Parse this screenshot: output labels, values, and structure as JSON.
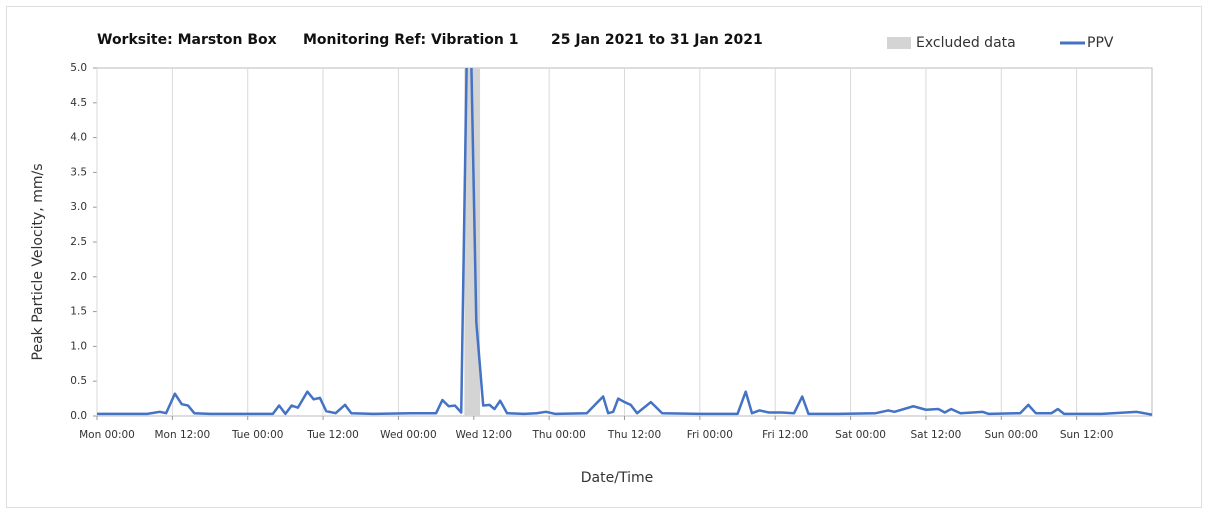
{
  "chart_data": {
    "type": "line",
    "title": [
      "Worksite: Marston Box",
      "Monitoring Ref: Vibration 1",
      "25 Jan 2021 to 31 Jan 2021"
    ],
    "x_label": "Date/Time",
    "y_label": "Peak Particle Velocity, mm/s",
    "xlim": [
      0,
      168
    ],
    "xticks": [
      {
        "value": 0,
        "label": "Mon 00:00"
      },
      {
        "value": 12,
        "label": "Mon 12:00"
      },
      {
        "value": 24,
        "label": "Tue 00:00"
      },
      {
        "value": 36,
        "label": "Tue 12:00"
      },
      {
        "value": 48,
        "label": "Wed 00:00"
      },
      {
        "value": 60,
        "label": "Wed 12:00"
      },
      {
        "value": 72,
        "label": "Thu 00:00"
      },
      {
        "value": 84,
        "label": "Thu 12:00"
      },
      {
        "value": 96,
        "label": "Fri 00:00"
      },
      {
        "value": 108,
        "label": "Fri 12:00"
      },
      {
        "value": 120,
        "label": "Sat 00:00"
      },
      {
        "value": 132,
        "label": "Sat 12:00"
      },
      {
        "value": 144,
        "label": "Sun 00:00"
      },
      {
        "value": 156,
        "label": "Sun 12:00"
      }
    ],
    "ylim": [
      0,
      5
    ],
    "yticks": [
      {
        "value": 0,
        "label": "0.0"
      },
      0.5,
      {
        "value": 1,
        "label": "1.0"
      },
      1.5,
      {
        "value": 2,
        "label": "2.0"
      },
      2.5,
      {
        "value": 3,
        "label": "3.0"
      },
      3.5,
      {
        "value": 4,
        "label": "4.0"
      },
      4.5,
      {
        "value": 5,
        "label": "5.0"
      }
    ],
    "grid": true,
    "excluded": {
      "name": "Excluded data",
      "color": "#d4d4d4",
      "x": [
        58.5,
        61
      ]
    },
    "series": [
      {
        "name": "PPV",
        "color": "#4472c4",
        "x": [
          0,
          4,
          8,
          10,
          11,
          12.4,
          13.5,
          14.5,
          15.5,
          18,
          24,
          28,
          29,
          30,
          31,
          32,
          33.5,
          34.5,
          35.5,
          36.5,
          38,
          39.5,
          40.5,
          44,
          50,
          54,
          55,
          56,
          57,
          58,
          59.2,
          60.4,
          61.5,
          62.5,
          63.3,
          64.2,
          65.3,
          68,
          70,
          71.5,
          73,
          78,
          79.5,
          80.6,
          81.4,
          82.2,
          83,
          84,
          85,
          86,
          88.2,
          90,
          96,
          102,
          103.3,
          104.3,
          105.5,
          107,
          109,
          111,
          112.3,
          113.3,
          118,
          124,
          126,
          127,
          130,
          132,
          134,
          135,
          136,
          137.5,
          141,
          142,
          147,
          148.3,
          149.5,
          152,
          153,
          154,
          160,
          165.5,
          168
        ],
        "values": [
          0.03,
          0.03,
          0.03,
          0.06,
          0.04,
          0.32,
          0.17,
          0.15,
          0.04,
          0.03,
          0.03,
          0.03,
          0.15,
          0.03,
          0.15,
          0.12,
          0.35,
          0.24,
          0.26,
          0.07,
          0.04,
          0.16,
          0.04,
          0.03,
          0.04,
          0.04,
          0.23,
          0.14,
          0.15,
          0.05,
          7,
          1.35,
          0.15,
          0.16,
          0.1,
          0.22,
          0.04,
          0.03,
          0.04,
          0.06,
          0.03,
          0.04,
          0.18,
          0.28,
          0.04,
          0.06,
          0.25,
          0.2,
          0.16,
          0.04,
          0.2,
          0.04,
          0.03,
          0.03,
          0.35,
          0.04,
          0.08,
          0.05,
          0.05,
          0.04,
          0.28,
          0.03,
          0.03,
          0.04,
          0.08,
          0.06,
          0.14,
          0.09,
          0.1,
          0.05,
          0.1,
          0.04,
          0.06,
          0.03,
          0.04,
          0.16,
          0.04,
          0.04,
          0.1,
          0.03,
          0.03,
          0.06,
          0.02
        ]
      }
    ]
  }
}
